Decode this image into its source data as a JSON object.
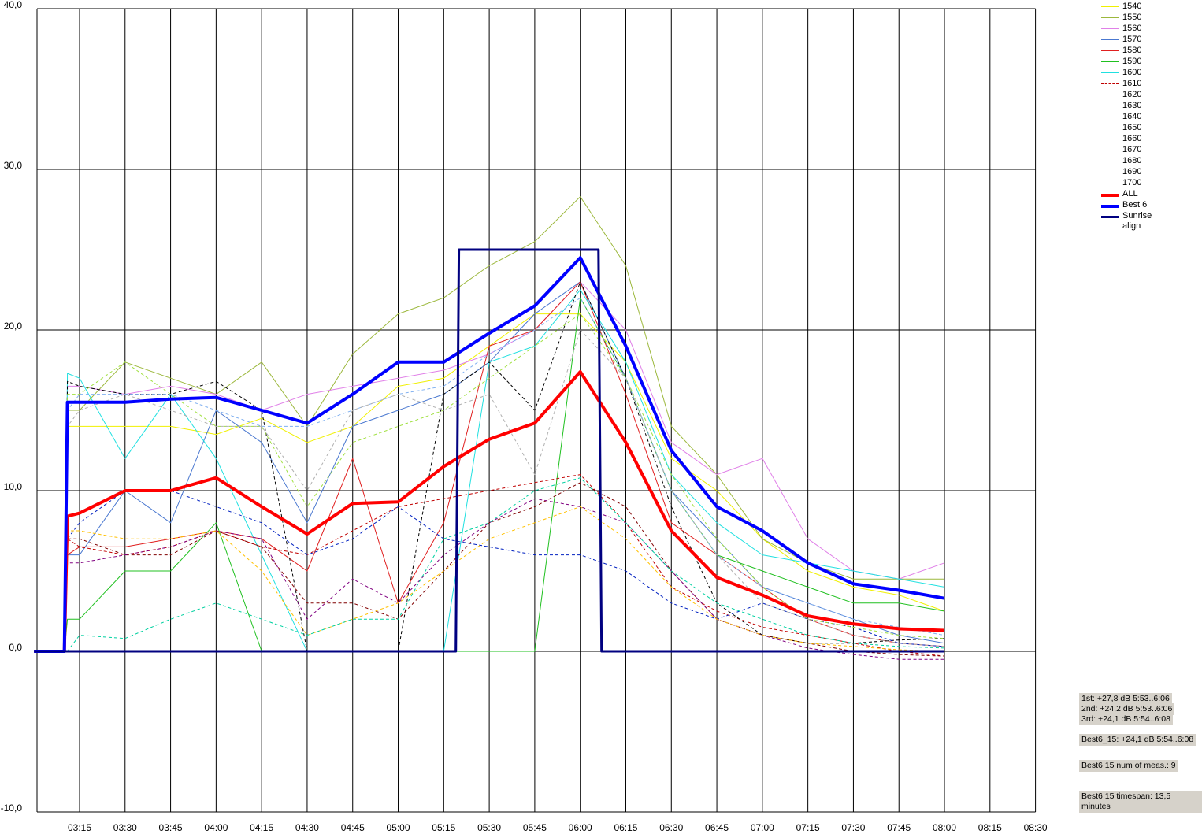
{
  "chart_data": {
    "type": "line",
    "x": [
      "03:00",
      "03:10",
      "03:11",
      "03:15",
      "03:30",
      "03:45",
      "04:00",
      "04:15",
      "04:30",
      "04:45",
      "05:00",
      "05:15",
      "05:30",
      "05:45",
      "06:00",
      "06:15",
      "06:30",
      "06:45",
      "07:00",
      "07:15",
      "07:30",
      "07:45",
      "08:00"
    ],
    "xlim": [
      "03:00",
      "08:30"
    ],
    "xticks": [
      "03:15",
      "03:30",
      "03:45",
      "04:00",
      "04:15",
      "04:30",
      "04:45",
      "05:00",
      "05:15",
      "05:30",
      "05:45",
      "06:00",
      "06:15",
      "06:30",
      "06:45",
      "07:00",
      "07:15",
      "07:30",
      "07:45",
      "08:00",
      "08:15",
      "08:30"
    ],
    "ylim": [
      -10,
      40
    ],
    "yticks": [
      {
        "value": -10,
        "label": "-10,0"
      },
      {
        "value": 0,
        "label": "0,0"
      },
      {
        "value": 10,
        "label": "10,0"
      },
      {
        "value": 20,
        "label": "20,0"
      },
      {
        "value": 30,
        "label": "30,0"
      },
      {
        "value": 40,
        "label": "40,0"
      }
    ],
    "grid": true,
    "series": [
      {
        "name": "1540",
        "color": "#f0f000",
        "width": 1,
        "style": "solid",
        "values": [
          0,
          0,
          14,
          14,
          14,
          14,
          13.5,
          14.5,
          13,
          14,
          16.5,
          17,
          19,
          21,
          21,
          18,
          12,
          10,
          7,
          5,
          4,
          3.5,
          2.5
        ]
      },
      {
        "name": "1550",
        "color": "#9cb83c",
        "width": 1,
        "style": "solid",
        "values": [
          0,
          0,
          15,
          15,
          18,
          17,
          16,
          18,
          14,
          18.5,
          21,
          22,
          24,
          25.5,
          28.3,
          24,
          14,
          11,
          7,
          5.5,
          4.5,
          4.5,
          4.5
        ]
      },
      {
        "name": "1560",
        "color": "#e080e8",
        "width": 1,
        "style": "solid",
        "values": [
          0,
          0,
          16.5,
          16.5,
          16,
          16.5,
          16,
          15,
          16,
          16.5,
          17,
          17.5,
          18.5,
          20,
          23,
          20,
          13,
          11,
          12,
          7,
          5,
          4.5,
          5.5
        ]
      },
      {
        "name": "1570",
        "color": "#4a78d0",
        "width": 1,
        "style": "solid",
        "values": [
          0,
          0,
          6,
          6,
          10,
          8,
          15,
          13,
          8,
          14,
          15,
          16,
          18,
          21,
          23,
          17,
          10,
          7,
          4,
          3,
          2,
          1,
          0.5
        ]
      },
      {
        "name": "1580",
        "color": "#e02020",
        "width": 1,
        "style": "solid",
        "values": [
          0,
          0,
          6,
          6.5,
          6.5,
          7,
          7.5,
          7,
          5,
          12,
          3,
          8,
          19,
          20,
          23,
          16,
          8,
          6,
          4,
          2,
          1,
          0.5,
          0.3
        ]
      },
      {
        "name": "1590",
        "color": "#20c020",
        "width": 1,
        "style": "solid",
        "values": [
          0,
          0,
          2,
          2,
          5,
          5,
          8,
          0,
          0,
          0,
          0,
          0,
          0,
          0,
          22,
          17,
          10,
          6,
          5,
          4,
          3,
          3,
          2.5
        ]
      },
      {
        "name": "1600",
        "color": "#20e0e0",
        "width": 1,
        "style": "solid",
        "values": [
          0,
          0,
          17.3,
          17,
          12,
          16,
          12,
          6,
          0,
          0,
          0,
          0,
          18,
          19,
          22.5,
          18,
          11,
          8,
          6,
          5.5,
          5,
          4.5,
          4
        ]
      },
      {
        "name": "1610",
        "color": "#c00000",
        "width": 1,
        "style": "dashed",
        "values": [
          0,
          0,
          7,
          6.5,
          6,
          6.5,
          7.5,
          6.5,
          6,
          7.5,
          9,
          9.5,
          10,
          10.5,
          11,
          8,
          4,
          2.5,
          1.5,
          1,
          0.5,
          0,
          -0.3
        ]
      },
      {
        "name": "1620",
        "color": "#000000",
        "width": 1,
        "style": "dashed",
        "values": [
          0,
          0,
          16.8,
          16.5,
          16,
          16,
          16.8,
          15,
          0,
          0,
          0,
          16,
          18,
          15,
          23,
          17,
          9,
          3,
          1,
          0.5,
          0.5,
          0.7,
          0.8
        ]
      },
      {
        "name": "1630",
        "color": "#0020c0",
        "width": 1,
        "style": "dashed",
        "values": [
          0,
          0,
          7,
          8,
          10,
          10,
          9,
          8,
          6,
          7,
          9,
          7,
          6.5,
          6,
          6,
          5,
          3,
          2,
          3,
          2,
          1.5,
          0.5,
          0.3
        ]
      },
      {
        "name": "1640",
        "color": "#800000",
        "width": 1,
        "style": "dashed",
        "values": [
          0,
          0,
          7,
          7,
          6,
          6,
          7.5,
          6.5,
          3,
          3,
          2,
          5,
          8,
          9,
          10.5,
          9,
          5,
          2,
          1,
          0.5,
          0,
          -0.2,
          -0.3
        ]
      },
      {
        "name": "1650",
        "color": "#a0e040",
        "width": 1,
        "style": "dashed",
        "values": [
          0,
          0,
          16,
          16,
          18,
          16,
          14,
          14,
          9,
          13,
          14,
          15,
          17,
          19,
          21,
          17,
          11,
          7,
          4,
          2,
          1.5,
          1,
          0.8
        ]
      },
      {
        "name": "1660",
        "color": "#80b0f0",
        "width": 1,
        "style": "dashed",
        "values": [
          0,
          0,
          15,
          16,
          16,
          16,
          15,
          14,
          14,
          15,
          16,
          16.5,
          18.5,
          20,
          22,
          17,
          10,
          6,
          4,
          3,
          2,
          1.5,
          1
        ]
      },
      {
        "name": "1670",
        "color": "#800080",
        "width": 1,
        "style": "dashed",
        "values": [
          0,
          0,
          5.5,
          5.5,
          6,
          6.5,
          7.5,
          7,
          2,
          4.5,
          3,
          6,
          8,
          9.5,
          9,
          8,
          5,
          2,
          1,
          0.2,
          -0.2,
          -0.5,
          -0.5
        ]
      },
      {
        "name": "1680",
        "color": "#ffc000",
        "width": 1,
        "style": "dashed",
        "values": [
          0,
          0,
          7.5,
          7.5,
          7,
          7,
          7.5,
          5,
          1,
          2,
          3,
          5,
          7,
          8,
          9,
          7,
          4,
          2,
          1,
          0.5,
          0.3,
          0.1,
          0
        ]
      },
      {
        "name": "1690",
        "color": "#b0b0b0",
        "width": 1,
        "style": "dashed",
        "values": [
          0,
          0,
          14,
          15,
          16,
          15,
          14,
          14,
          10,
          15,
          16,
          15,
          16,
          11,
          20,
          17,
          10,
          6,
          3,
          2,
          1,
          0.5,
          0.3
        ]
      },
      {
        "name": "1700",
        "color": "#00d0a0",
        "width": 1,
        "style": "dashed",
        "values": [
          0,
          0,
          0,
          1,
          0.8,
          2,
          3,
          2,
          1,
          2,
          2,
          7,
          8,
          10,
          10.8,
          8,
          5,
          3,
          2,
          1,
          0.5,
          0.3,
          0.2
        ]
      },
      {
        "name": "ALL",
        "color": "#ff0000",
        "width": 4,
        "style": "solid",
        "values": [
          0,
          0,
          8.4,
          8.6,
          10,
          10,
          10.8,
          9,
          7.3,
          9.2,
          9.3,
          11.5,
          13.2,
          14.2,
          17.4,
          13,
          7.5,
          4.6,
          3.5,
          2.2,
          1.7,
          1.4,
          1.3
        ]
      },
      {
        "name": "Best 6",
        "color": "#0000ff",
        "width": 4,
        "style": "solid",
        "values": [
          0,
          0,
          15.5,
          15.5,
          15.5,
          15.7,
          15.8,
          15,
          14.2,
          16,
          18,
          18,
          19.8,
          21.5,
          24.5,
          19,
          12.5,
          9,
          7.5,
          5.5,
          4.2,
          3.8,
          3.3
        ]
      },
      {
        "name": "Sunrise align",
        "color": "#000080",
        "width": 3,
        "style": "solid",
        "x": [
          "03:00",
          "05:19",
          "05:20",
          "06:06",
          "06:07",
          "08:00"
        ],
        "values": [
          0,
          0,
          25,
          25,
          0,
          0
        ]
      }
    ],
    "annotations": [
      "1st: +27,8 dB 5:53..6:06",
      "2nd: +24,2 dB 5:53..6:06",
      "3rd: +24,1 dB 5:54..6:08",
      "Best6_15: +24,1 dB 5:54..6:08",
      "Best6 15 num of meas.: 9",
      "Best6 15 timespan: 13,5 minutes"
    ]
  }
}
